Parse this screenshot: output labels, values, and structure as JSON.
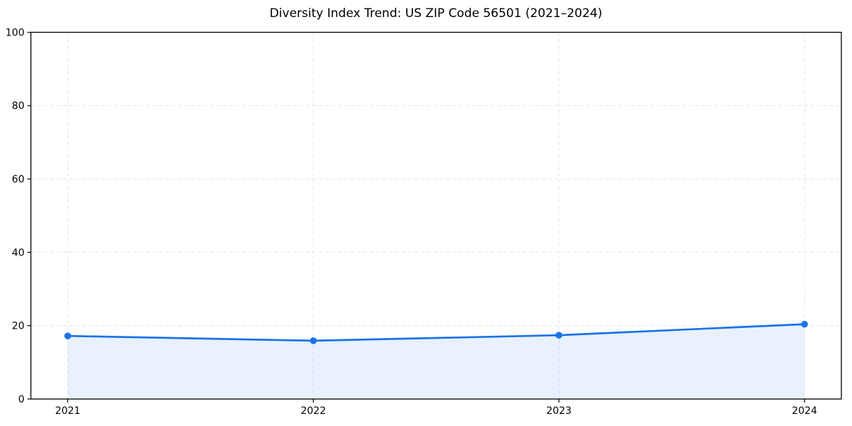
{
  "chart_data": {
    "type": "area",
    "title": "Diversity Index Trend: US ZIP Code 56501 (2021–2024)",
    "xlabel": "",
    "ylabel": "",
    "x": [
      2021,
      2022,
      2023,
      2024
    ],
    "categories": [
      "2021",
      "2022",
      "2023",
      "2024"
    ],
    "series": [
      {
        "name": "Diversity Index",
        "values": [
          17.2,
          15.9,
          17.4,
          20.4
        ]
      }
    ],
    "ylim": [
      0,
      100
    ],
    "yticks": [
      0,
      20,
      40,
      60,
      80,
      100
    ],
    "x_margin_fraction": 0.05,
    "grid": true,
    "grid_style": "dashed",
    "legend": null,
    "colors": {
      "line": "#1a73e8",
      "marker": "#1a73e8",
      "fill": "rgba(26,115,232,0.10)",
      "grid": "#e4e4e4",
      "axis": "#000000",
      "background": "#ffffff",
      "text": "#000000"
    }
  }
}
